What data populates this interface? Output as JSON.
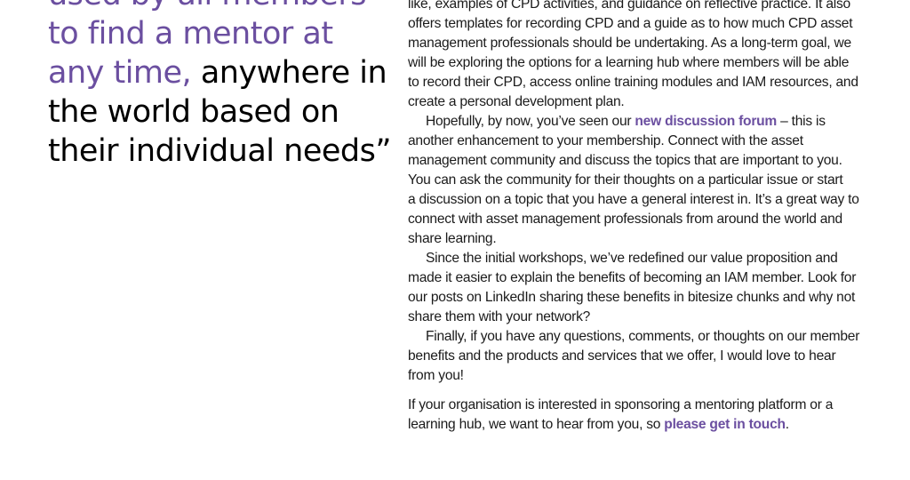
{
  "accent_color": "#6b4fa0",
  "pull_quote": {
    "purple_lines": [
      "used by all members",
      "to find a mentor at",
      "any time,"
    ],
    "black_lines": [
      "anywhere in",
      "the world based on",
      "their individual needs”"
    ]
  },
  "article": {
    "p1": [
      "like, examples of CPD activities, and guidance on reflective practice. It also",
      "offers templates for recording CPD and a guide as to how much CPD asset",
      "management professionals should be undertaking. As a long-term goal, we",
      "will be exploring the options for a learning hub where members will be able",
      "to record their CPD, access online training modules and IAM resources, and",
      "create a personal development plan."
    ],
    "p2_first_before": "Hopefully, by now, you’ve seen our ",
    "p2_link": "new discussion forum",
    "p2_first_after": " – this is",
    "p2": [
      "another enhancement to your membership. Connect with the asset",
      "management community and discuss the topics that are important to you.",
      "You can ask the community for their thoughts on a particular issue or start",
      "a discussion on a topic that you have a general interest in. It’s a great way to",
      "connect with asset management professionals from around the world and",
      "share learning."
    ],
    "p3": [
      "Since the initial workshops, we’ve redefined our value proposition and",
      "made it easier to explain the benefits of becoming an IAM member. Look for",
      "our posts on LinkedIn sharing these benefits in bitesize chunks and why not",
      "share them with your network?"
    ],
    "p4": [
      "Finally, if you have any questions, comments, or thoughts on our member",
      "benefits and the products and services that we offer, I would love to hear",
      "from you!"
    ],
    "p5_line1": "If your organisation is interested in sponsoring a mentoring platform or a",
    "p5_before": "learning hub, we want to hear from you, so ",
    "p5_link": "please get in touch",
    "p5_after": "."
  }
}
